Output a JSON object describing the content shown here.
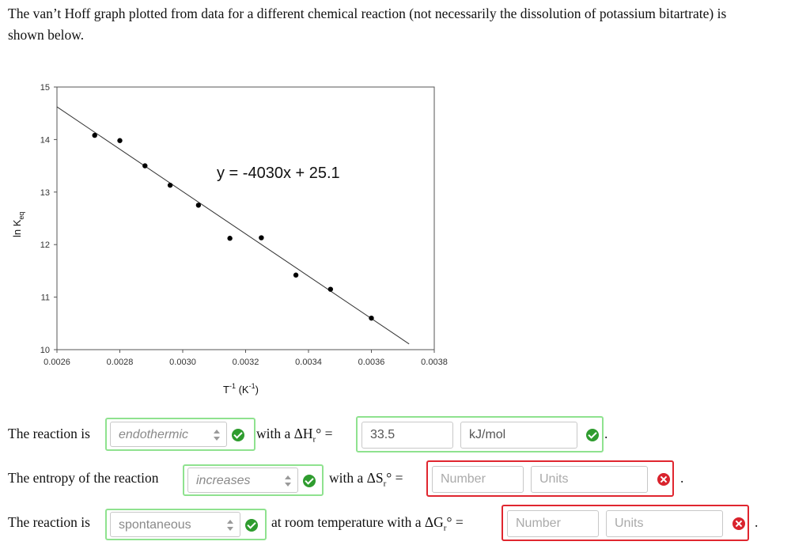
{
  "intro": {
    "line1": "The van’t Hoff graph plotted from data for a different chemical reaction (not necessarily the dissolution of potassium bitartrate) is",
    "line2": "shown below."
  },
  "chart_data": {
    "type": "scatter",
    "xlabel": "T⁻¹ (K⁻¹)",
    "ylabel": "ln K_eq",
    "xlim": [
      0.0026,
      0.0038
    ],
    "ylim": [
      10,
      15
    ],
    "x_ticks": [
      "0.0026",
      "0.0028",
      "0.0030",
      "0.0032",
      "0.0034",
      "0.0036",
      "0.0038"
    ],
    "y_ticks": [
      "10",
      "11",
      "12",
      "13",
      "14",
      "15"
    ],
    "points": [
      {
        "x": 0.00272,
        "y": 14.08
      },
      {
        "x": 0.0028,
        "y": 13.98
      },
      {
        "x": 0.00288,
        "y": 13.5
      },
      {
        "x": 0.00296,
        "y": 13.13
      },
      {
        "x": 0.00305,
        "y": 12.75
      },
      {
        "x": 0.00315,
        "y": 12.12
      },
      {
        "x": 0.00325,
        "y": 12.13
      },
      {
        "x": 0.00336,
        "y": 11.42
      },
      {
        "x": 0.00347,
        "y": 11.15
      },
      {
        "x": 0.0036,
        "y": 10.6
      }
    ],
    "trendline": {
      "slope": -4030,
      "intercept": 25.1,
      "x_start": 0.0026,
      "x_end": 0.00372
    },
    "equation": "y = -4030x + 25.1",
    "grid": false
  },
  "row1": {
    "prefix": "The reaction is",
    "select_value": "endothermic",
    "mid_text": "with a ΔH",
    "mid_sub": "r",
    "mid_suffix": "° =",
    "value": "33.5",
    "units": "kJ/mol"
  },
  "row2": {
    "prefix": "The entropy of the reaction",
    "select_value": "increases",
    "mid_text": "with a ΔS",
    "mid_sub": "r",
    "mid_suffix": "° =",
    "value_placeholder": "Number",
    "units_placeholder": "Units"
  },
  "row3": {
    "prefix": "The reaction is",
    "select_value": "spontaneous",
    "mid_text": "at room temperature with a ΔG",
    "mid_sub": "r",
    "mid_suffix": "° =",
    "value_placeholder": "Number",
    "units_placeholder": "Units"
  },
  "trailing_period": ".",
  "colors": {
    "ok_border": "#8fe28f",
    "error_border": "#e0262f",
    "ok_icon": "#2f9c2f",
    "error_icon": "#d9232d"
  }
}
